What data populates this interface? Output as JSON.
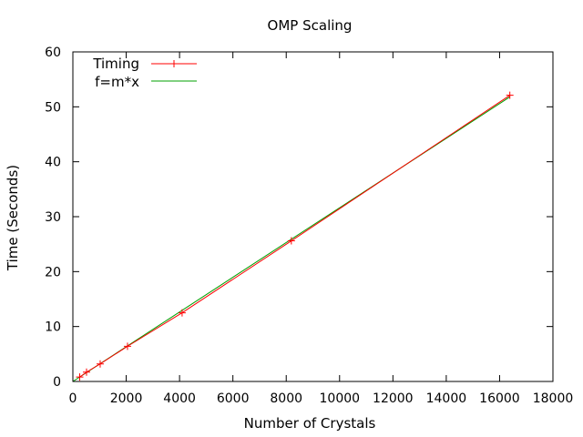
{
  "chart_data": {
    "type": "line",
    "title": "OMP Scaling",
    "xlabel": "Number of Crystals",
    "ylabel": "Time (Seconds)",
    "xlim": [
      0,
      18000
    ],
    "ylim": [
      0,
      60
    ],
    "xticks": [
      0,
      2000,
      4000,
      6000,
      8000,
      10000,
      12000,
      14000,
      16000,
      18000
    ],
    "yticks": [
      0,
      10,
      20,
      30,
      40,
      50,
      60
    ],
    "legend_position": "top-left",
    "grid": false,
    "series": [
      {
        "name": "Timing",
        "style": "line-with-plus-markers",
        "color": "#ff0000",
        "x": [
          256,
          512,
          1024,
          2048,
          4096,
          8192,
          16384
        ],
        "y": [
          0.8,
          1.7,
          3.2,
          6.4,
          12.5,
          25.6,
          52.1
        ]
      },
      {
        "name": "f=m*x",
        "style": "line",
        "color": "#00a000",
        "x": [
          0,
          16384
        ],
        "y": [
          0,
          51.8
        ]
      }
    ]
  }
}
